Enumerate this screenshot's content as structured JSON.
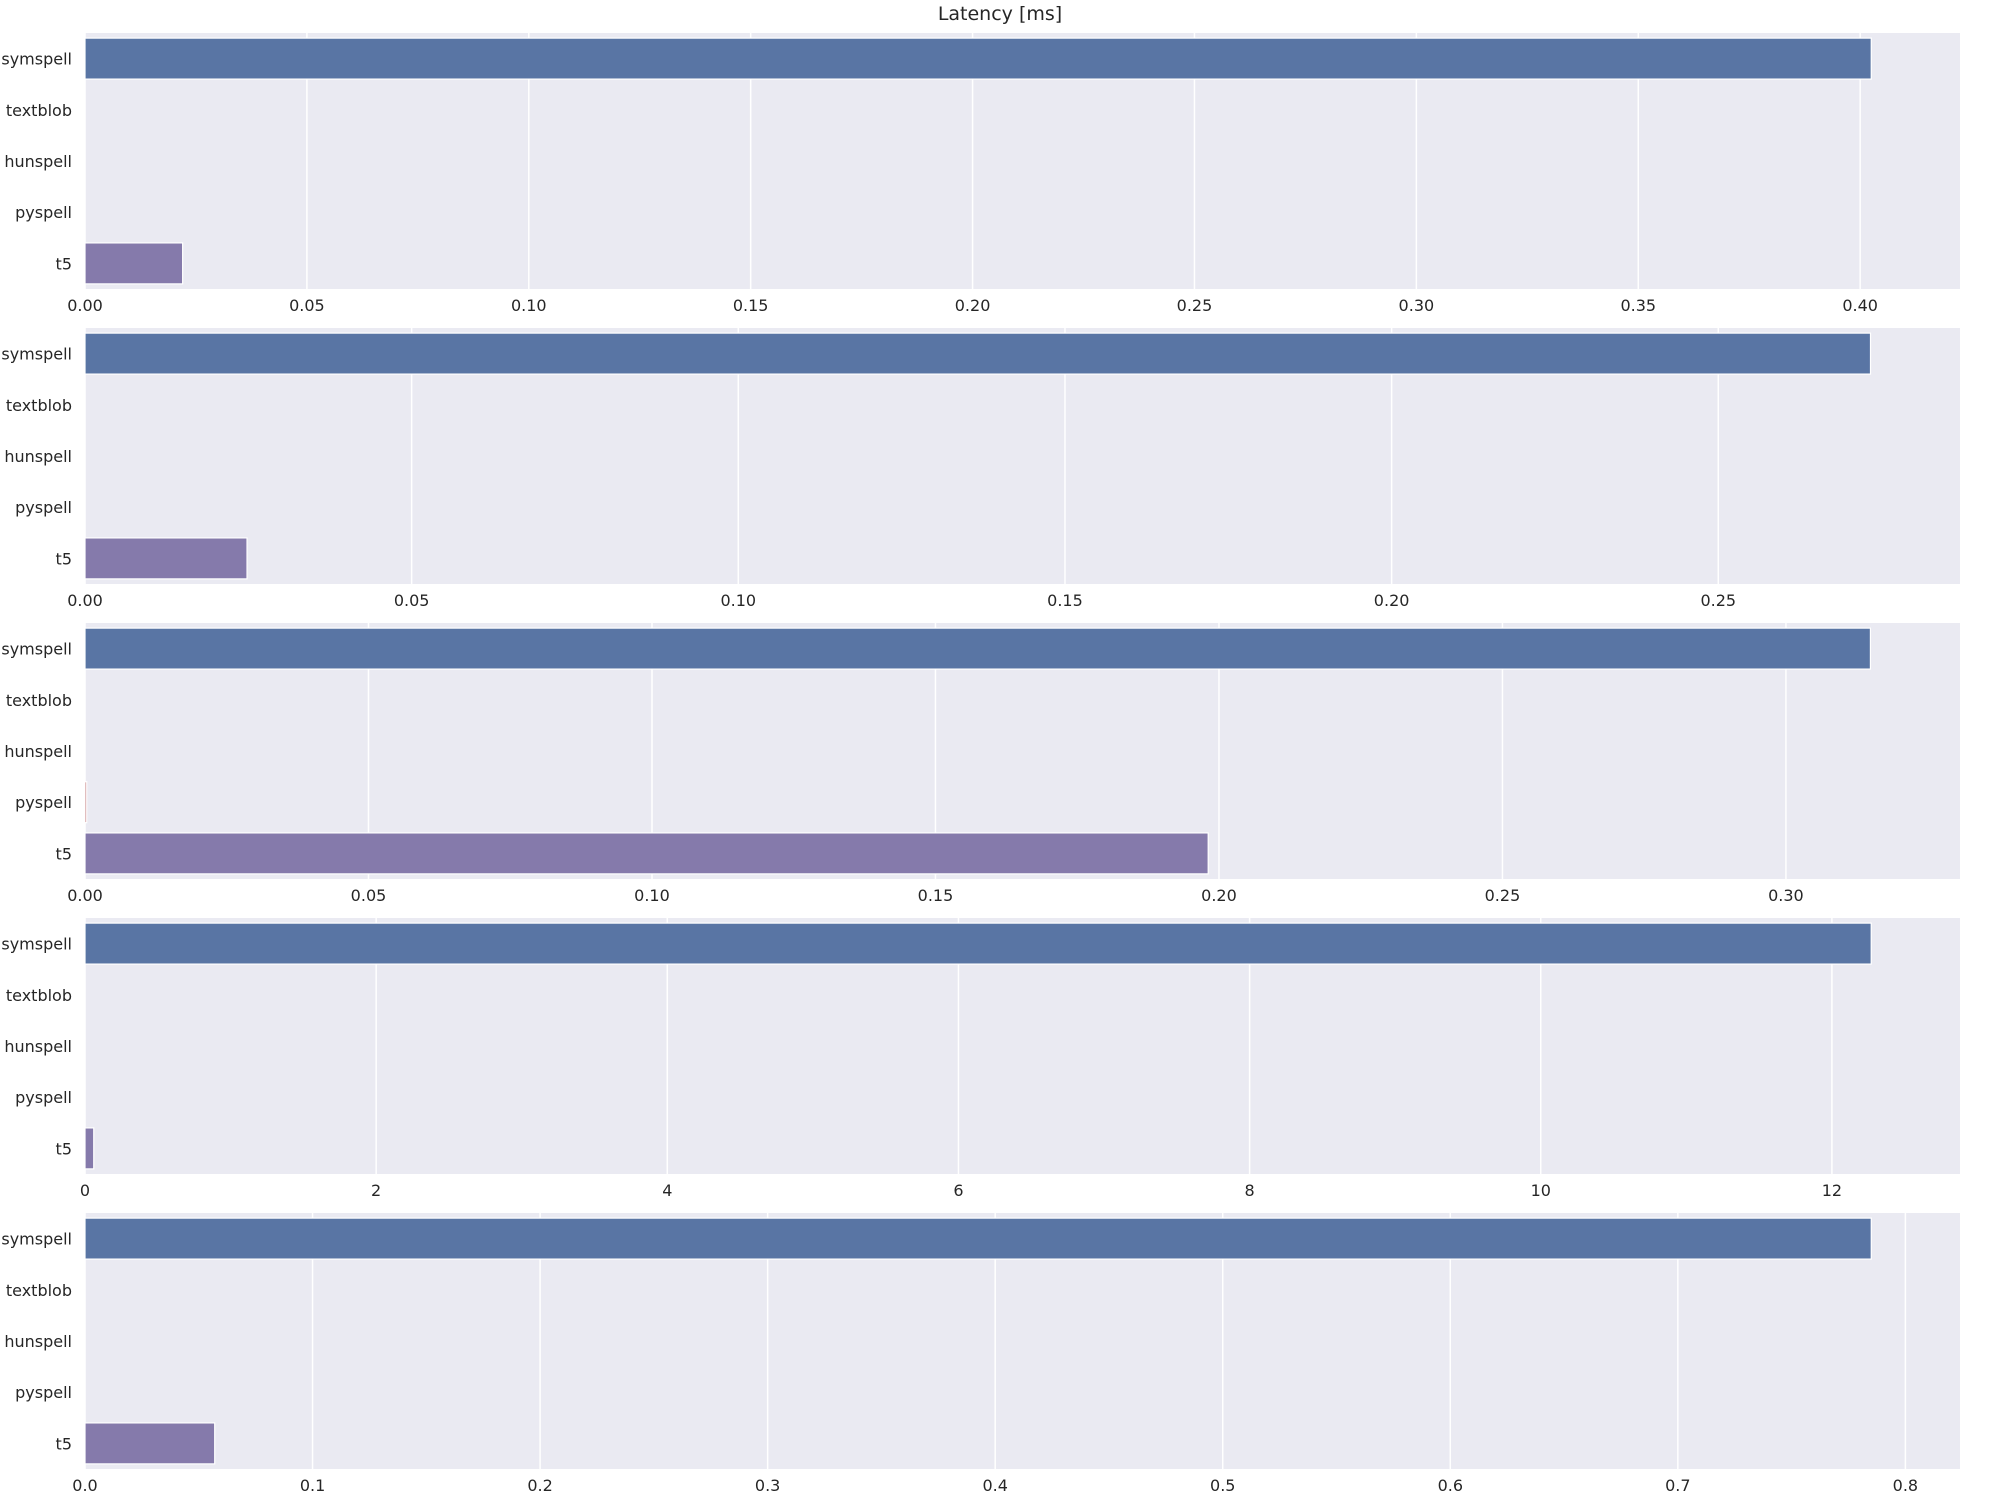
{
  "title": "Latency [ms]",
  "colors": {
    "panel_background": "#eaeaf2",
    "grid": "#ffffff",
    "text": "#262626",
    "bar_edge": "#ffffff"
  },
  "chart_data": [
    {
      "type": "bar",
      "orientation": "horizontal",
      "categories": [
        "symspell",
        "textblob",
        "hunspell",
        "pyspell",
        "t5"
      ],
      "values": [
        0.4025,
        0.0,
        0.0,
        0.0,
        0.022
      ],
      "colors": [
        "#5975a4",
        "#cc8963",
        "#5f9e6e",
        "#b55d60",
        "#857aab"
      ],
      "xlim": [
        0,
        0.4225
      ],
      "xticks": [
        "0.00",
        "0.05",
        "0.10",
        "0.15",
        "0.20",
        "0.25",
        "0.30",
        "0.35",
        "0.40"
      ],
      "grid": true
    },
    {
      "type": "bar",
      "orientation": "horizontal",
      "categories": [
        "symspell",
        "textblob",
        "hunspell",
        "pyspell",
        "t5"
      ],
      "values": [
        0.2733,
        0.0,
        0.0,
        0.0,
        0.0248
      ],
      "colors": [
        "#5975a4",
        "#cc8963",
        "#5f9e6e",
        "#b55d60",
        "#857aab"
      ],
      "xlim": [
        0,
        0.287
      ],
      "xticks": [
        "0.00",
        "0.05",
        "0.10",
        "0.15",
        "0.20",
        "0.25"
      ],
      "grid": true
    },
    {
      "type": "bar",
      "orientation": "horizontal",
      "categories": [
        "symspell",
        "textblob",
        "hunspell",
        "pyspell",
        "t5"
      ],
      "values": [
        0.3149,
        0.0,
        0.0,
        0.0003,
        0.1981
      ],
      "colors": [
        "#5975a4",
        "#cc8963",
        "#5f9e6e",
        "#b55d60",
        "#857aab"
      ],
      "xlim": [
        0,
        0.3307
      ],
      "xticks": [
        "0.00",
        "0.05",
        "0.10",
        "0.15",
        "0.20",
        "0.25",
        "0.30"
      ],
      "grid": true
    },
    {
      "type": "bar",
      "orientation": "horizontal",
      "categories": [
        "symspell",
        "textblob",
        "hunspell",
        "pyspell",
        "t5"
      ],
      "values": [
        12.27,
        0.0,
        0.0,
        0.0,
        0.06
      ],
      "colors": [
        "#5975a4",
        "#cc8963",
        "#5f9e6e",
        "#b55d60",
        "#857aab"
      ],
      "xlim": [
        0,
        12.88
      ],
      "xticks": [
        "0",
        "2",
        "4",
        "6",
        "8",
        "10",
        "12"
      ],
      "grid": true
    },
    {
      "type": "bar",
      "orientation": "horizontal",
      "categories": [
        "symspell",
        "textblob",
        "hunspell",
        "pyspell",
        "t5"
      ],
      "values": [
        0.785,
        0.0,
        0.0,
        0.0,
        0.057
      ],
      "colors": [
        "#5975a4",
        "#cc8963",
        "#5f9e6e",
        "#b55d60",
        "#857aab"
      ],
      "xlim": [
        0,
        0.824
      ],
      "xticks": [
        "0.0",
        "0.1",
        "0.2",
        "0.3",
        "0.4",
        "0.5",
        "0.6",
        "0.7",
        "0.8"
      ],
      "grid": true
    }
  ]
}
